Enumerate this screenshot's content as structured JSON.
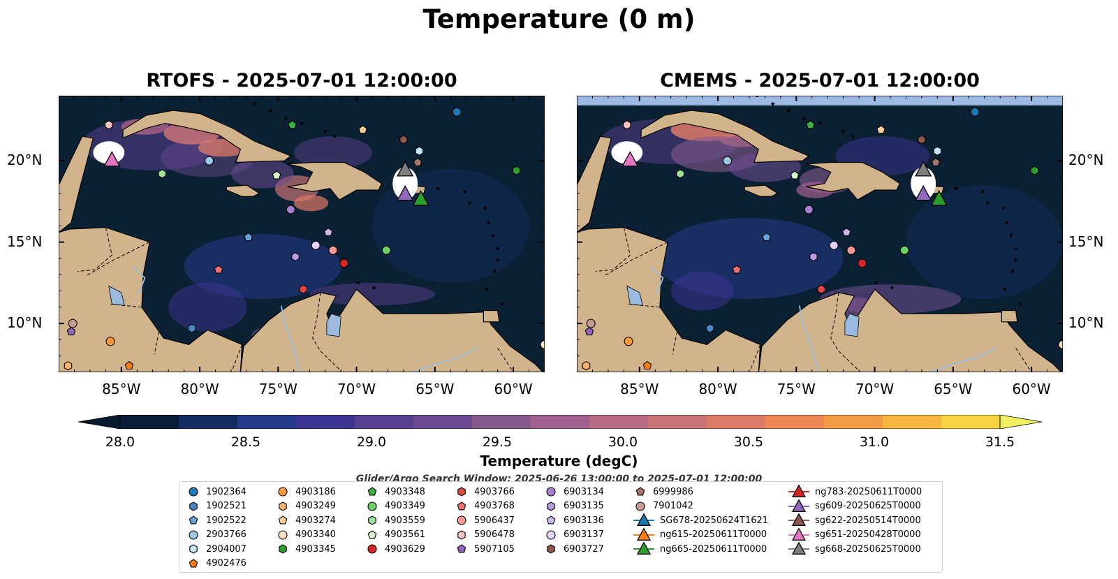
{
  "title": "Temperature (0 m)",
  "maps": [
    {
      "id": "left",
      "title": "RTOFS - 2025-07-01 12:00:00"
    },
    {
      "id": "right",
      "title": "CMEMS - 2025-07-01 12:00:00"
    }
  ],
  "axes": {
    "lon_range": [
      -89,
      -58
    ],
    "lat_range": [
      7,
      24
    ],
    "x_ticks": [
      "85°W",
      "80°W",
      "75°W",
      "70°W",
      "65°W",
      "60°W"
    ],
    "x_tick_values": [
      -85,
      -80,
      -75,
      -70,
      -65,
      -60
    ],
    "y_ticks": [
      "20°N",
      "15°N",
      "10°N"
    ],
    "y_tick_values": [
      20,
      15,
      10
    ]
  },
  "colorbar": {
    "label": "Temperature (degC)",
    "ticks": [
      "28.0",
      "28.5",
      "29.0",
      "29.5",
      "30.0",
      "30.5",
      "31.0",
      "31.5"
    ],
    "colors": [
      "#0b1d3a",
      "#142b5e",
      "#263a8a",
      "#3d3594",
      "#57408f",
      "#6c4c91",
      "#85598e",
      "#9f618d",
      "#b66a86",
      "#c97377",
      "#de7a67",
      "#ee8555",
      "#f59b45",
      "#f7b63d",
      "#f6d343"
    ],
    "min_color": "#08192d",
    "max_color": "#f0f060"
  },
  "search_window": "Glider/Argo Search Window: 2025-06-26 13:00:00 to 2025-07-01 12:00:00",
  "colors": {
    "land": "#d2b48c",
    "ocean_dark": "#0b2133",
    "lakes": "#9bbce0",
    "band_top": "#9bb9e2"
  },
  "legend": [
    {
      "label": "1902364",
      "marker": "circle",
      "color": "#1f77b4"
    },
    {
      "label": "1902521",
      "marker": "hexagon",
      "color": "#4a86c0"
    },
    {
      "label": "1902522",
      "marker": "pentagon",
      "color": "#6ba3d6"
    },
    {
      "label": "2903766",
      "marker": "circle",
      "color": "#9ecae1"
    },
    {
      "label": "2904007",
      "marker": "hexagon",
      "color": "#c6e6f5"
    },
    {
      "label": "4902476",
      "marker": "pentagon",
      "color": "#ff7f0e"
    },
    {
      "label": "4903186",
      "marker": "circle",
      "color": "#ff9a3c"
    },
    {
      "label": "4903249",
      "marker": "hexagon",
      "color": "#ffb26b"
    },
    {
      "label": "4903274",
      "marker": "pentagon",
      "color": "#ffcf99"
    },
    {
      "label": "4903340",
      "marker": "circle",
      "color": "#ffe3c4"
    },
    {
      "label": "4903345",
      "marker": "hexagon",
      "color": "#2ca02c"
    },
    {
      "label": "4903348",
      "marker": "pentagon",
      "color": "#3cb043"
    },
    {
      "label": "4903349",
      "marker": "circle",
      "color": "#6fcf66"
    },
    {
      "label": "4903559",
      "marker": "hexagon",
      "color": "#a1e09a"
    },
    {
      "label": "4903561",
      "marker": "pentagon",
      "color": "#d4f7c8"
    },
    {
      "label": "4903629",
      "marker": "circle",
      "color": "#d62728"
    },
    {
      "label": "4903766",
      "marker": "hexagon",
      "color": "#e04848"
    },
    {
      "label": "4903768",
      "marker": "pentagon",
      "color": "#f0716e"
    },
    {
      "label": "5906437",
      "marker": "circle",
      "color": "#f79a96"
    },
    {
      "label": "5906478",
      "marker": "hexagon",
      "color": "#fcc4c0"
    },
    {
      "label": "5907105",
      "marker": "pentagon",
      "color": "#9467bd"
    },
    {
      "label": "6903134",
      "marker": "circle",
      "color": "#a67fcf"
    },
    {
      "label": "6903135",
      "marker": "hexagon",
      "color": "#b89ae0"
    },
    {
      "label": "6903136",
      "marker": "pentagon",
      "color": "#d0b8ef"
    },
    {
      "label": "6903137",
      "marker": "circle",
      "color": "#e4d2fa"
    },
    {
      "label": "6903727",
      "marker": "hexagon",
      "color": "#8c564b"
    },
    {
      "label": "6999986",
      "marker": "pentagon",
      "color": "#a6776d"
    },
    {
      "label": "7901042",
      "marker": "circle",
      "color": "#c49c94"
    },
    {
      "label": "SG678-20250624T1621",
      "marker": "triangle-line",
      "color": "#1f77b4"
    },
    {
      "label": "ng615-20250611T0000",
      "marker": "triangle-line",
      "color": "#ff7f0e"
    },
    {
      "label": "ng665-20250611T0000",
      "marker": "triangle-line",
      "color": "#2ca02c"
    },
    {
      "label": "ng783-20250611T0000",
      "marker": "triangle-line",
      "color": "#d62728"
    },
    {
      "label": "sg609-20250625T0000",
      "marker": "triangle-line",
      "color": "#9467bd"
    },
    {
      "label": "sg622-20250514T0000",
      "marker": "triangle-line",
      "color": "#8c564b"
    },
    {
      "label": "sg651-20250428T0000",
      "marker": "triangle-line",
      "color": "#e377c2"
    },
    {
      "label": "sg668-20250625T0000",
      "marker": "triangle-line",
      "color": "#7f7f7f"
    }
  ],
  "floats": [
    {
      "id": "1902364",
      "lon": -63.6,
      "lat": 23.0
    },
    {
      "id": "1902521",
      "lon": -80.5,
      "lat": 9.7
    },
    {
      "id": "1902522",
      "lon": -76.9,
      "lat": 15.3
    },
    {
      "id": "2903766",
      "lon": -79.4,
      "lat": 20.0
    },
    {
      "id": "2904007",
      "lon": -66.0,
      "lat": 20.6
    },
    {
      "id": "4902476",
      "lon": -84.5,
      "lat": 7.4
    },
    {
      "id": "4903186",
      "lon": -85.7,
      "lat": 8.9
    },
    {
      "id": "4903249",
      "lon": -88.4,
      "lat": 7.4
    },
    {
      "id": "4903274",
      "lon": -69.6,
      "lat": 21.9
    },
    {
      "id": "4903340",
      "lon": -58.0,
      "lat": 8.7
    },
    {
      "id": "4903345",
      "lon": -59.8,
      "lat": 19.4
    },
    {
      "id": "4903348",
      "lon": -74.1,
      "lat": 22.2
    },
    {
      "id": "4903349",
      "lon": -68.1,
      "lat": 14.5
    },
    {
      "id": "4903559",
      "lon": -82.4,
      "lat": 19.2
    },
    {
      "id": "4903561",
      "lon": -75.1,
      "lat": 19.1
    },
    {
      "id": "4903629",
      "lon": -70.8,
      "lat": 13.7
    },
    {
      "id": "4903766",
      "lon": -73.4,
      "lat": 12.1
    },
    {
      "id": "4903768",
      "lon": -78.8,
      "lat": 13.3
    },
    {
      "id": "5906437",
      "lon": -71.5,
      "lat": 14.5
    },
    {
      "id": "5906478",
      "lon": -85.8,
      "lat": 22.2
    },
    {
      "id": "5907105",
      "lon": -88.2,
      "lat": 9.5
    },
    {
      "id": "6903134",
      "lon": -74.2,
      "lat": 17.0
    },
    {
      "id": "6903135",
      "lon": -73.9,
      "lat": 14.1
    },
    {
      "id": "6903136",
      "lon": -71.8,
      "lat": 15.6
    },
    {
      "id": "6903137",
      "lon": -72.6,
      "lat": 14.8
    },
    {
      "id": "6903727",
      "lon": -67.0,
      "lat": 21.3
    },
    {
      "id": "6999986",
      "lon": -66.1,
      "lat": 19.9
    },
    {
      "id": "7901042",
      "lon": -88.1,
      "lat": 10.0
    }
  ],
  "gliders": [
    {
      "id": "sg651-20250428T0000",
      "lon": -85.6,
      "lat": 20.0
    },
    {
      "id": "sg668-20250625T0000",
      "lon": -66.9,
      "lat": 19.4
    },
    {
      "id": "sg609-20250625T0000",
      "lon": -66.9,
      "lat": 17.9
    },
    {
      "id": "ng665-20250611T0000",
      "lon": -65.9,
      "lat": 17.6
    }
  ]
}
